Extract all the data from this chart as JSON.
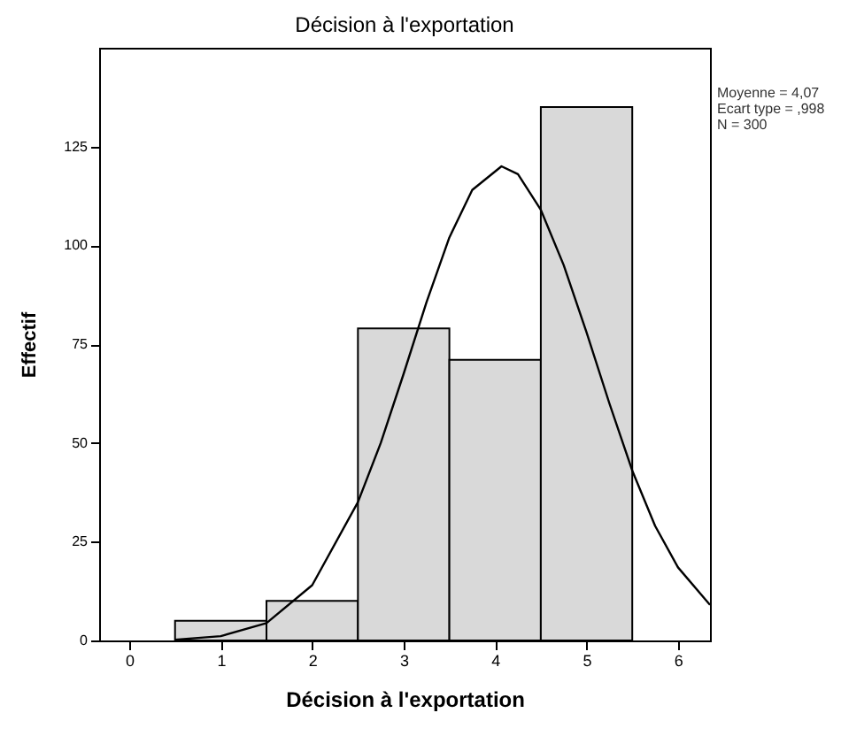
{
  "chart_data": {
    "type": "histogram",
    "title": "Décision à l'exportation",
    "xlabel": "Décision à l'exportation",
    "ylabel": "Effectif",
    "bins": [
      0.5,
      1.5,
      2.5,
      3.5,
      4.5,
      5.5
    ],
    "values": [
      5,
      10,
      79,
      71,
      135
    ],
    "color": "#d9d9d9",
    "series": [
      {
        "type": "line",
        "color": "#000000",
        "x": [
          0.5,
          1.0,
          1.5,
          2.0,
          2.5,
          2.75,
          3.0,
          3.25,
          3.5,
          3.75,
          4.07,
          4.25,
          4.5,
          4.75,
          5.0,
          5.25,
          5.5,
          5.75,
          6.0,
          6.35
        ],
        "values": [
          0.2,
          1.1,
          4.4,
          14,
          35,
          50,
          67.5,
          85.6,
          102,
          114,
          120,
          118,
          109,
          95,
          78,
          60,
          43,
          29,
          18.5,
          9
        ]
      }
    ],
    "annotations": [
      "Moyenne = 4,07",
      "Ecart type = ,998",
      "N = 300"
    ],
    "xlim": [
      -0.33,
      6.35
    ],
    "ylim": [
      0,
      150
    ],
    "xticks": [
      0,
      1,
      2,
      3,
      4,
      5,
      6
    ],
    "yticks": [
      0,
      25,
      50,
      75,
      100,
      125
    ],
    "grid": false
  }
}
